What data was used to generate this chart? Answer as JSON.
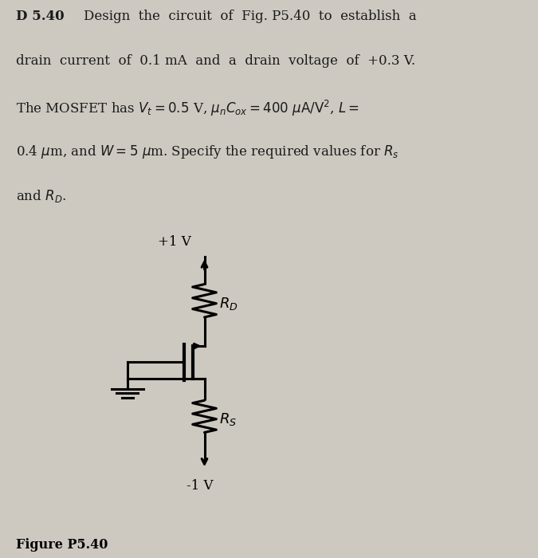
{
  "figure_label": "Figure P5.40",
  "vdd_label": "+1 V",
  "vss_label": "-1 V",
  "rd_label": "R_D",
  "rs_label": "R_S",
  "bg_color": "#cdc9c0",
  "text_color": "#1a1a1a",
  "line_color": "#000000",
  "fig_width": 6.75,
  "fig_height": 7.0
}
